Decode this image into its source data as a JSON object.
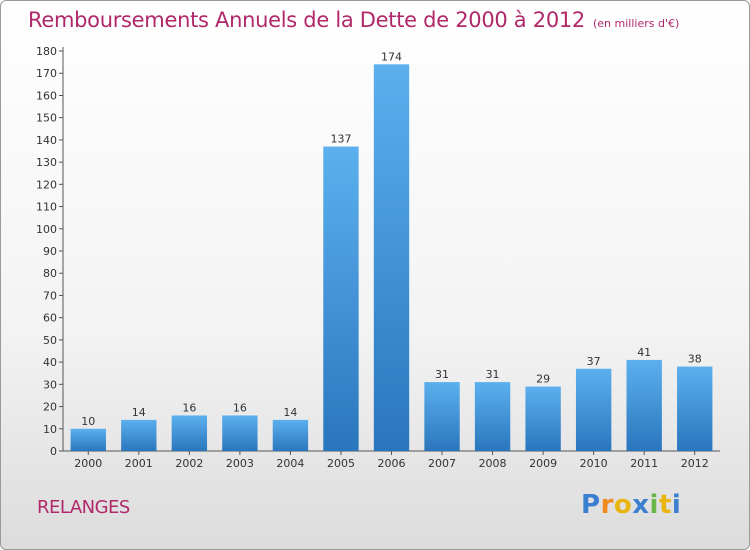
{
  "chart_data": {
    "type": "bar",
    "title": "Remboursements Annuels de la Dette de 2000 à 2012",
    "unit": "(en milliers d'€)",
    "categories": [
      "2000",
      "2001",
      "2002",
      "2003",
      "2004",
      "2005",
      "2006",
      "2007",
      "2008",
      "2009",
      "2010",
      "2011",
      "2012"
    ],
    "values": [
      10,
      14,
      16,
      16,
      14,
      137,
      174,
      31,
      31,
      29,
      37,
      41,
      38
    ],
    "ylim": [
      0,
      180
    ],
    "yticks": [
      0,
      10,
      20,
      30,
      40,
      50,
      60,
      70,
      80,
      90,
      100,
      110,
      120,
      130,
      140,
      150,
      160,
      170,
      180
    ],
    "xlabel": "",
    "ylabel": "",
    "grid": false,
    "bar_color": "#3a8fd6"
  },
  "location": "RELANGES",
  "brand": {
    "letters": [
      "P",
      "r",
      "o",
      "x",
      "i",
      "t",
      "i"
    ],
    "colors": [
      "#3a7fd0",
      "#f08a1c",
      "#e8b50f",
      "#3a7fd0",
      "#6ab64a",
      "#e8b50f",
      "#3a7fd0"
    ]
  },
  "accent_color": "#b0286a"
}
